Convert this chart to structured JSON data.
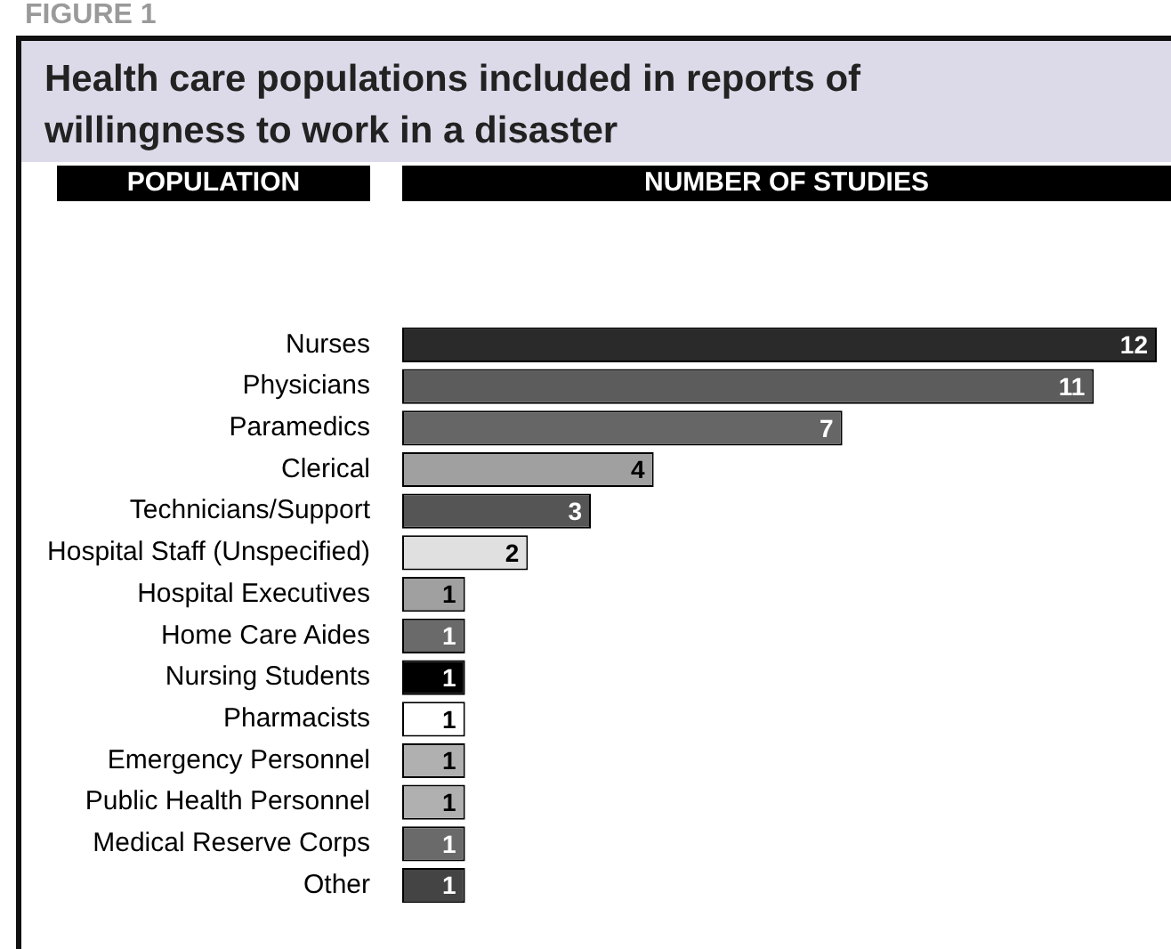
{
  "chart_data": {
    "type": "bar",
    "orientation": "horizontal",
    "title": "Health care populations included in reports of willingness to work in a disaster",
    "annotations": [
      "FIGURE 1",
      "POPULATION",
      "NUMBER OF STUDIES"
    ],
    "categories": [
      "Nurses",
      "Physicians",
      "Paramedics",
      "Clerical",
      "Technicians/Support",
      "Hospital Staff (Unspecified)",
      "Hospital Executives",
      "Home Care Aides",
      "Nursing Students",
      "Pharmacists",
      "Emergency Personnel",
      "Public Health Personnel",
      "Medical Reserve Corps",
      "Other"
    ],
    "values": [
      12,
      11,
      7,
      4,
      3,
      2,
      1,
      1,
      1,
      1,
      1,
      1,
      1,
      1
    ],
    "colors": [
      "#2a2a2a",
      "#5c5c5c",
      "#666666",
      "#a0a0a0",
      "#555555",
      "#e0e0e0",
      "#a0a0a0",
      "#6a6a6a",
      "#000000",
      "#ffffff",
      "#b0b0b0",
      "#b0b0b0",
      "#6a6a6a",
      "#444444"
    ],
    "xlim": [
      0,
      12
    ],
    "data_labels": true,
    "grid": false,
    "legend": false
  }
}
